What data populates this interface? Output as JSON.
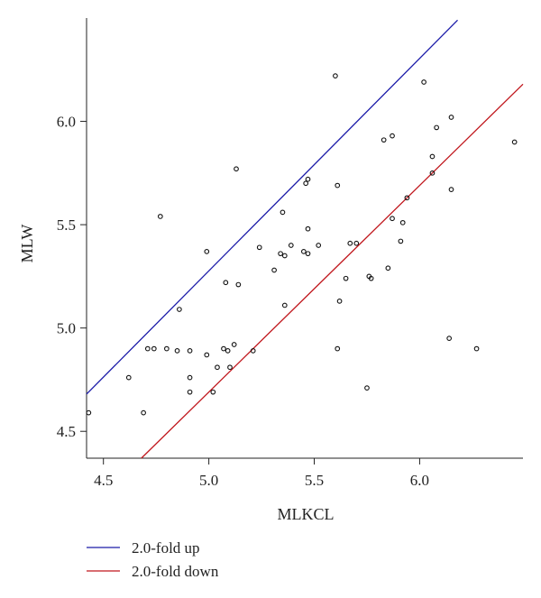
{
  "chart_data": {
    "type": "scatter",
    "title": "",
    "xlabel": "MLKCL",
    "ylabel": "MLW",
    "xlim": [
      4.42,
      6.49
    ],
    "ylim": [
      4.37,
      6.5
    ],
    "x_ticks": [
      4.5,
      5.0,
      5.5,
      6.0
    ],
    "x_tick_labels": [
      "4.5",
      "5.0",
      "5.5",
      "6.0"
    ],
    "y_ticks": [
      4.5,
      5.0,
      5.5,
      6.0
    ],
    "y_tick_labels": [
      "4.5",
      "5.0",
      "5.5",
      "6.0"
    ],
    "grid": false,
    "legend_position": "bottom-left",
    "lines": [
      {
        "name": "2.0-fold up",
        "color": "#1a1aa8",
        "x": [
          4.42,
          6.18
        ],
        "y": [
          4.68,
          6.49
        ]
      },
      {
        "name": "2.0-fold down",
        "color": "#c0161c",
        "x": [
          4.68,
          6.49
        ],
        "y": [
          4.37,
          6.18
        ]
      }
    ],
    "points": {
      "color": "#111111",
      "x": [
        4.43,
        4.62,
        4.69,
        4.71,
        4.74,
        4.77,
        4.8,
        4.85,
        4.86,
        4.91,
        4.91,
        4.91,
        4.99,
        4.99,
        5.02,
        5.04,
        5.07,
        5.08,
        5.09,
        5.1,
        5.12,
        5.13,
        5.14,
        5.21,
        5.24,
        5.31,
        5.34,
        5.35,
        5.36,
        5.36,
        5.39,
        5.45,
        5.46,
        5.47,
        5.47,
        5.47,
        5.52,
        5.6,
        5.61,
        5.61,
        5.62,
        5.65,
        5.67,
        5.7,
        5.75,
        5.76,
        5.77,
        5.83,
        5.85,
        5.87,
        5.87,
        5.91,
        5.92,
        5.94,
        6.02,
        6.06,
        6.06,
        6.08,
        6.14,
        6.15,
        6.15,
        6.27,
        6.45
      ],
      "y": [
        4.59,
        4.76,
        4.59,
        4.9,
        4.9,
        5.54,
        4.9,
        4.89,
        5.09,
        4.89,
        4.76,
        4.69,
        4.87,
        5.37,
        4.69,
        4.81,
        4.9,
        5.22,
        4.89,
        4.81,
        4.92,
        5.77,
        5.21,
        4.89,
        5.39,
        5.28,
        5.36,
        5.56,
        5.35,
        5.11,
        5.4,
        5.37,
        5.7,
        5.48,
        5.36,
        5.72,
        5.4,
        6.22,
        5.69,
        4.9,
        5.13,
        5.24,
        5.41,
        5.41,
        4.71,
        5.25,
        5.24,
        5.91,
        5.29,
        5.53,
        5.93,
        5.42,
        5.51,
        5.63,
        6.19,
        5.75,
        5.83,
        5.97,
        4.95,
        5.67,
        6.02,
        4.9,
        5.9
      ]
    }
  }
}
